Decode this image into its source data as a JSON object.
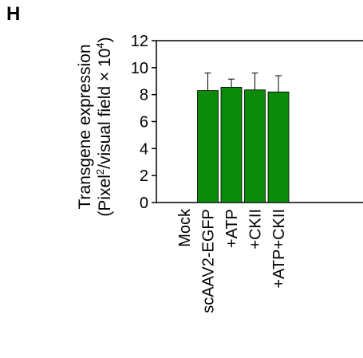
{
  "panel_label": "H",
  "chart_data": {
    "type": "bar",
    "ylabel_line1": "Transgene expression",
    "ylabel_line2_prefix": "(Pixel",
    "ylabel_line2_sup1": "2",
    "ylabel_line2_mid": "/visual field × 10",
    "ylabel_line2_sup2": "4",
    "ylabel_line2_suffix": ")",
    "ylim": [
      0,
      12
    ],
    "yticks": [
      0,
      2,
      4,
      6,
      8,
      10,
      12
    ],
    "categories": [
      "Mock",
      "scAAV2-EGFP",
      "+ATP",
      "+CKII",
      "+ATP+CKII"
    ],
    "values": [
      0,
      8.3,
      8.55,
      8.35,
      8.2
    ],
    "errors": [
      0,
      1.3,
      0.6,
      1.25,
      1.2
    ],
    "bar_color": "#0b8a0b",
    "grid": false
  }
}
